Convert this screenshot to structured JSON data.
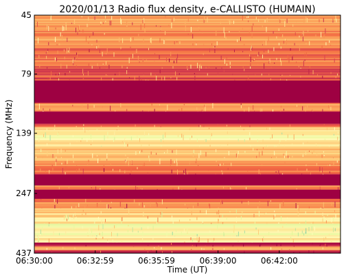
{
  "chart_data": {
    "type": "heatmap",
    "title": "2020/01/13  Radio flux density, e-CALLISTO (HUMAIN)",
    "xlabel": "Time (UT)",
    "ylabel": "Frequency (MHz)",
    "x_ticks": [
      "06:30:00",
      "06:32:59",
      "06:35:59",
      "06:39:00",
      "06:42:00"
    ],
    "y_ticks": [
      "45",
      "79",
      "139",
      "247",
      "437"
    ],
    "xlim": [
      "06:30:00",
      "06:45:00"
    ],
    "ylim": [
      45,
      437
    ],
    "y_scale": "log",
    "y_inverted": true,
    "colormap": [
      "#9e0142",
      "#d53e4f",
      "#f46d43",
      "#fdae61",
      "#fee08b",
      "#ffffbf",
      "#e6f598",
      "#abdda4",
      "#66c2a5"
    ],
    "frequency_bands": [
      {
        "from": 45,
        "to": 60,
        "level": 0.32
      },
      {
        "from": 60,
        "to": 75,
        "level": 0.26
      },
      {
        "from": 75,
        "to": 80,
        "level": 0.16
      },
      {
        "from": 80,
        "to": 84,
        "level": 0.2
      },
      {
        "from": 84,
        "to": 104,
        "level": 0.0
      },
      {
        "from": 104,
        "to": 113,
        "level": 0.28
      },
      {
        "from": 113,
        "to": 127,
        "level": 0.0
      },
      {
        "from": 127,
        "to": 131,
        "level": 0.22
      },
      {
        "from": 131,
        "to": 135,
        "level": 0.55
      },
      {
        "from": 135,
        "to": 151,
        "level": 0.58
      },
      {
        "from": 151,
        "to": 158,
        "level": 0.52
      },
      {
        "from": 158,
        "to": 176,
        "level": 0.42
      },
      {
        "from": 176,
        "to": 190,
        "level": 0.38
      },
      {
        "from": 190,
        "to": 206,
        "level": 0.22
      },
      {
        "from": 206,
        "to": 229,
        "level": 0.0
      },
      {
        "from": 229,
        "to": 238,
        "level": 0.28
      },
      {
        "from": 238,
        "to": 260,
        "level": 0.0
      },
      {
        "from": 260,
        "to": 285,
        "level": 0.25
      },
      {
        "from": 285,
        "to": 330,
        "level": 0.5
      },
      {
        "from": 330,
        "to": 372,
        "level": 0.64
      },
      {
        "from": 372,
        "to": 395,
        "level": 0.5
      },
      {
        "from": 395,
        "to": 410,
        "level": 0.12
      },
      {
        "from": 410,
        "to": 423,
        "level": 0.35
      },
      {
        "from": 423,
        "to": 437,
        "level": 0.08
      }
    ]
  }
}
